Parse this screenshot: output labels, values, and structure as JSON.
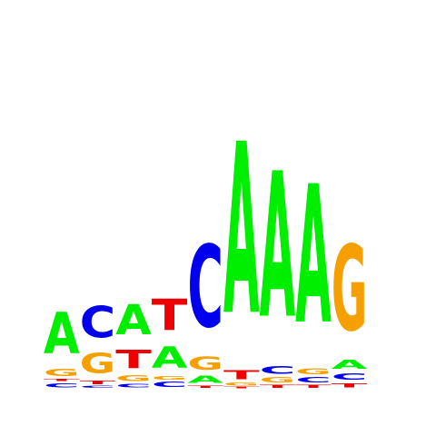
{
  "logo": {
    "alphabet": [
      "A",
      "C",
      "G",
      "T"
    ],
    "colors": {
      "A": "#00ee00",
      "C": "#0000ee",
      "G": "#f5a000",
      "T": "#ee0000"
    },
    "positions": [
      {
        "stack": [
          [
            "C",
            0.06
          ],
          [
            "T",
            0.03
          ],
          [
            "G",
            0.1
          ],
          [
            "A",
            0.58
          ]
        ]
      },
      {
        "stack": [
          [
            "C",
            0.03
          ],
          [
            "T",
            0.05
          ],
          [
            "G",
            0.28
          ],
          [
            "C",
            0.44
          ]
        ]
      },
      {
        "stack": [
          [
            "C",
            0.05
          ],
          [
            "G",
            0.08
          ],
          [
            "T",
            0.26
          ],
          [
            "A",
            0.42
          ]
        ]
      },
      {
        "stack": [
          [
            "C",
            0.07
          ],
          [
            "G",
            0.05
          ],
          [
            "A",
            0.3
          ],
          [
            "T",
            0.44
          ]
        ]
      },
      {
        "stack": [
          [
            "T",
            0.03
          ],
          [
            "A",
            0.1
          ],
          [
            "G",
            0.18
          ],
          [
            "C",
            1.15
          ]
        ]
      },
      {
        "stack": [
          [
            "T",
            0.02
          ],
          [
            "G",
            0.04
          ],
          [
            "T",
            0.12
          ],
          [
            "A",
            2.4
          ]
        ]
      },
      {
        "stack": [
          [
            "T",
            0.04
          ],
          [
            "G",
            0.07
          ],
          [
            "C",
            0.11
          ],
          [
            "A",
            2.04
          ]
        ]
      },
      {
        "stack": [
          [
            "T",
            0.04
          ],
          [
            "C",
            0.07
          ],
          [
            "G",
            0.08
          ],
          [
            "A",
            1.94
          ]
        ]
      },
      {
        "stack": [
          [
            "T",
            0.06
          ],
          [
            "C",
            0.09
          ],
          [
            "A",
            0.12
          ],
          [
            "G",
            1.2
          ]
        ]
      }
    ]
  }
}
